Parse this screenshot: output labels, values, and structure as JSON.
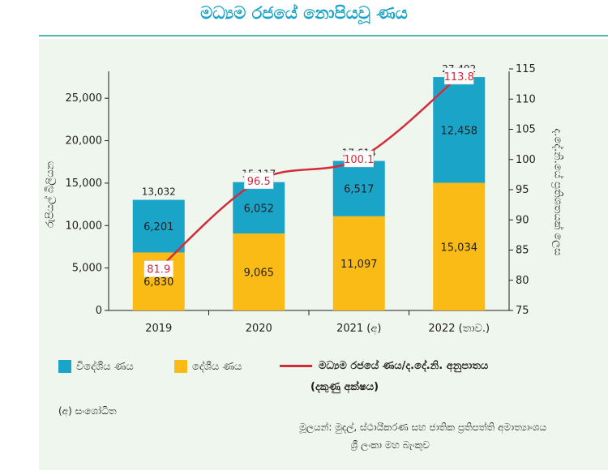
{
  "page_title": "මධ්‍යම රජයේ නොපියවූ ණය",
  "chart_data": {
    "type": "bar",
    "stacked": true,
    "categories": [
      "2019",
      "2020",
      "2021 (අ)",
      "2022 (තාව.)"
    ],
    "series": [
      {
        "name": "දේශීය ණය",
        "color": "#fbbb16",
        "labels": [
          "6,830",
          "9,065",
          "11,097",
          "15,034"
        ],
        "values": [
          6830,
          9065,
          11097,
          15034
        ]
      },
      {
        "name": "විදේශීය ණය",
        "color": "#1aa5c8",
        "labels": [
          "6,201",
          "6,052",
          "6,517",
          "12,458"
        ],
        "values": [
          6201,
          6052,
          6517,
          12458
        ]
      }
    ],
    "totals": {
      "labels": [
        "13,032",
        "15,117",
        "17,614",
        "27,492"
      ],
      "values": [
        13032,
        15117,
        17614,
        27492
      ]
    },
    "line": {
      "name": "මධ්‍යම රජයේ ණය/ද.දේ.නි. අනුපාතය",
      "axis": "right",
      "color": "#d32b3a",
      "values": [
        81.9,
        96.5,
        100.1,
        113.8
      ],
      "labels": [
        "81.9",
        "96.5",
        "100.1",
        "113.8"
      ]
    },
    "y_left": {
      "label": "රුපියල් බිලියන",
      "min": 0,
      "max": 27500,
      "ticks": [
        0,
        5000,
        10000,
        15000,
        20000,
        25000
      ],
      "tick_labels": [
        "0",
        "5,000",
        "10,000",
        "15,000",
        "20,000",
        "25,000"
      ]
    },
    "y_right": {
      "label": "ද.දේ.නි.යේ ප්‍රතිශතයක් ලෙස",
      "min": 75,
      "max": 115,
      "ticks": [
        75,
        80,
        85,
        90,
        95,
        100,
        105,
        110,
        115
      ],
      "tick_labels": [
        "75",
        "80",
        "85",
        "90",
        "95",
        "100",
        "105",
        "110",
        "115"
      ]
    }
  },
  "legend": {
    "foreign": "විදේශීය ණය",
    "domestic": "දේශීය ණය",
    "ratio": "මධ්‍යම රජයේ ණය/ද.දේ.නි. අනුපාතය",
    "ratio_axis_note": "(දකුණු අක්ෂය)"
  },
  "footnote": "(අ)  සංශෝධිත",
  "source": {
    "line1": "මූලයන්: මුදල්, ස්ථායීකරණ සහ ජාතික ප්‍රතිපත්ති අමාත්‍යාංශය",
    "line2": "ශ්‍රී ලංකා මහ බැංකුව"
  },
  "colors": {
    "accent": "#1aa5c8",
    "domestic": "#fbbb16",
    "foreign": "#1aa5c8",
    "ratio": "#d32b3a",
    "panel": "#eef6ee"
  }
}
